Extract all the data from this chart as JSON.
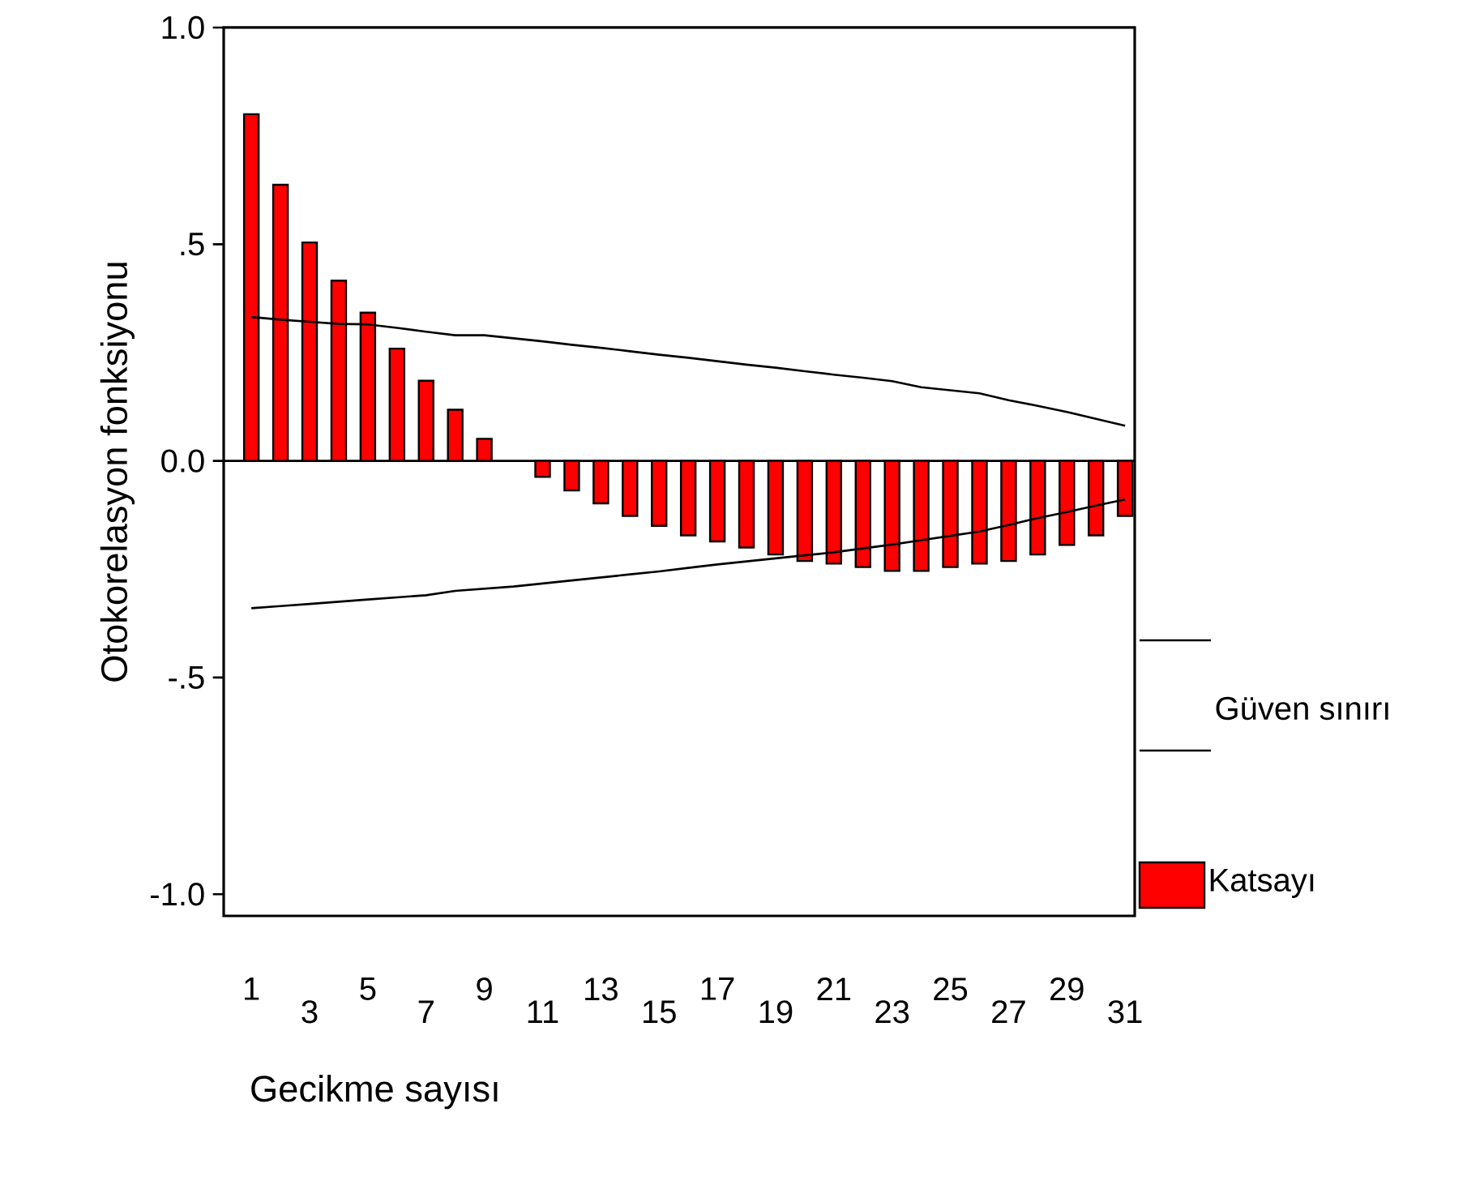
{
  "chart_data": {
    "type": "bar",
    "xlabel": "Gecikme sayısı",
    "ylabel": "Otokorelasyon fonksiyonu",
    "categories": [
      "1",
      null,
      "3",
      null,
      "5",
      null,
      "7",
      null,
      "9",
      null,
      "11",
      null,
      "13",
      null,
      "15",
      null,
      "17",
      null,
      "19",
      null,
      "21",
      null,
      "23",
      null,
      "25",
      null,
      "27",
      null,
      "29",
      null,
      "31"
    ],
    "series": [
      {
        "name": "Katsayı",
        "color": "#ff0000",
        "values": [
          0.8,
          0.637,
          0.504,
          0.416,
          0.342,
          0.259,
          0.185,
          0.118,
          0.051,
          null,
          -0.037,
          -0.068,
          -0.098,
          -0.127,
          -0.15,
          -0.172,
          -0.186,
          -0.2,
          -0.216,
          -0.231,
          -0.237,
          -0.245,
          -0.254,
          -0.254,
          -0.245,
          -0.237,
          -0.231,
          -0.216,
          -0.194,
          -0.172,
          -0.127
        ]
      },
      {
        "name": "Güven sınırı",
        "type": "line",
        "color": "#000000",
        "values": [
          0.332,
          0.326,
          0.321,
          0.316,
          0.315,
          0.307,
          0.298,
          0.29,
          0.29,
          0.283,
          0.276,
          0.268,
          0.261,
          0.253,
          0.245,
          0.238,
          0.23,
          0.222,
          0.215,
          0.207,
          0.199,
          0.192,
          0.184,
          0.17,
          0.163,
          0.156,
          0.14,
          0.127,
          0.113,
          0.097,
          0.081
        ]
      },
      {
        "type": "line",
        "color": "#000000",
        "values": [
          -0.34,
          -0.335,
          -0.33,
          -0.325,
          -0.32,
          -0.315,
          -0.31,
          -0.3,
          -0.295,
          -0.29,
          -0.283,
          -0.276,
          -0.269,
          -0.262,
          -0.255,
          -0.247,
          -0.239,
          -0.232,
          -0.225,
          -0.218,
          -0.211,
          -0.202,
          -0.193,
          -0.183,
          -0.173,
          -0.163,
          -0.148,
          -0.132,
          -0.118,
          -0.103,
          -0.089
        ]
      }
    ],
    "ylim": [
      -1.05,
      1.0
    ],
    "yticks": [
      {
        "value": -1.0,
        "label": "-1.0"
      },
      {
        "value": -0.5,
        "label": "-.5"
      },
      {
        "value": 0.0,
        "label": "0.0"
      },
      {
        "value": 0.5,
        "label": ".5"
      },
      {
        "value": 1.0,
        "label": "1.0"
      }
    ],
    "ref_lines": [
      {
        "axis": "y",
        "value": 0
      }
    ],
    "legend": "right",
    "grid": false
  }
}
